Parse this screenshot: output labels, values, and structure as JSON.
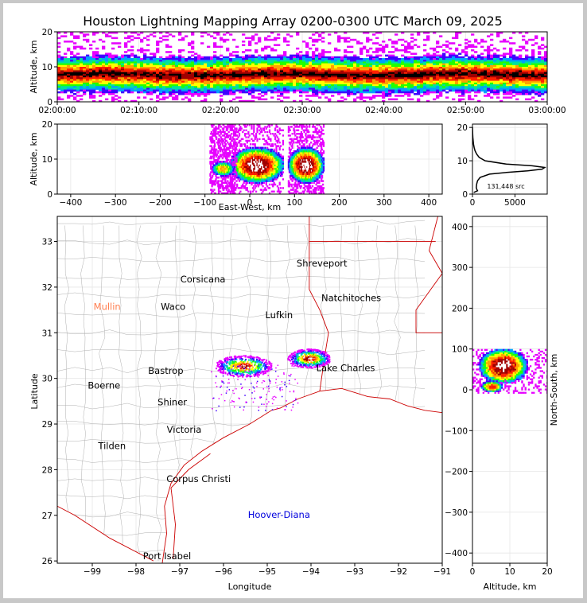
{
  "title": "Houston Lightning Mapping Array 0200-0300 UTC March 09, 2025",
  "colors": {
    "density_ramp": [
      "#e600ff",
      "#4000ff",
      "#00a0ff",
      "#00e0a0",
      "#20ff00",
      "#ffff00",
      "#ffa000",
      "#ff2000",
      "#a00000",
      "#ffffff"
    ],
    "state_border": "#cc0000",
    "county_border": "#b0b0b0",
    "grid": "#e6e6e6"
  },
  "chart_data": [
    {
      "id": "time-altitude",
      "type": "heatmap",
      "ylabel": "Altitude, km",
      "ylim": [
        0,
        20
      ],
      "yticks": [
        "0",
        "10",
        "20"
      ],
      "xticks": [
        "02:00:00",
        "02:10:00",
        "02:20:00",
        "02:30:00",
        "02:40:00",
        "02:50:00",
        "03:00:00"
      ],
      "xlim": [
        "02:00:00",
        "03:00:00"
      ],
      "peak_altitude_km": 8
    },
    {
      "id": "east-west-altitude",
      "type": "heatmap",
      "xlabel": "East-West, km",
      "ylabel": "Altitude, km",
      "xlim": [
        -430,
        430
      ],
      "ylim": [
        0,
        20
      ],
      "xticks": [
        -400,
        -300,
        -200,
        -100,
        0,
        100,
        200,
        300,
        400
      ],
      "yticks": [
        "0",
        "10",
        "20"
      ],
      "clusters": [
        {
          "x_center_km": 15,
          "x_halfwidth_km": 60,
          "core_altitude_km": 8
        },
        {
          "x_center_km": 125,
          "x_halfwidth_km": 40,
          "core_altitude_km": 8
        },
        {
          "x_center_km": -60,
          "x_halfwidth_km": 30,
          "core_altitude_km": 7
        }
      ]
    },
    {
      "id": "altitude-histogram",
      "type": "line",
      "xlim": [
        0,
        8800
      ],
      "ylim": [
        0,
        21
      ],
      "xticks": [
        0,
        5000
      ],
      "yticks": [
        "0",
        "10",
        "20"
      ],
      "annotation": "131,448 src",
      "altitude_km": [
        0.5,
        1,
        1.5,
        2,
        3,
        4,
        5,
        6,
        6.5,
        7,
        7.5,
        8,
        8.5,
        9,
        10,
        11,
        12,
        13,
        14,
        15,
        16,
        17,
        18,
        19,
        20
      ],
      "source_counts": [
        150,
        600,
        500,
        450,
        500,
        600,
        900,
        2000,
        4000,
        6500,
        8200,
        8500,
        7000,
        4000,
        1500,
        800,
        500,
        300,
        200,
        120,
        80,
        50,
        30,
        15,
        5
      ]
    },
    {
      "id": "plan-view-map",
      "type": "heatmap",
      "xlabel": "Longitude",
      "ylabel": "Latitude",
      "xlim": [
        -99.8,
        -91.0
      ],
      "ylim": [
        25.95,
        33.55
      ],
      "xticks": [
        "-99",
        "-98",
        "-97",
        "-96",
        "-95",
        "-94",
        "-93",
        "-92",
        "-91"
      ],
      "yticks": [
        "26",
        "27",
        "28",
        "29",
        "30",
        "31",
        "32",
        "33"
      ],
      "clusters": [
        {
          "lon": -95.55,
          "lat": 30.28,
          "rx_deg": 0.5,
          "ry_deg": 0.18
        },
        {
          "lon": -94.05,
          "lat": 30.45,
          "rx_deg": 0.38,
          "ry_deg": 0.16
        }
      ],
      "places": [
        {
          "name": "Shreveport",
          "lon": -93.75,
          "lat": 32.52,
          "color": "#000000"
        },
        {
          "name": "Corsicana",
          "lon": -96.47,
          "lat": 32.17,
          "color": "#000000"
        },
        {
          "name": "Natchitoches",
          "lon": -93.08,
          "lat": 31.76,
          "color": "#000000"
        },
        {
          "name": "Mullin",
          "lon": -98.66,
          "lat": 31.57,
          "color": "#ff7f50"
        },
        {
          "name": "Waco",
          "lon": -97.15,
          "lat": 31.57,
          "color": "#000000"
        },
        {
          "name": "Lufkin",
          "lon": -94.73,
          "lat": 31.39,
          "color": "#000000"
        },
        {
          "name": "Lake Charles",
          "lon": -93.21,
          "lat": 30.23,
          "color": "#000000"
        },
        {
          "name": "Bastrop",
          "lon": -97.32,
          "lat": 30.17,
          "color": "#000000"
        },
        {
          "name": "Boerne",
          "lon": -98.73,
          "lat": 29.85,
          "color": "#000000"
        },
        {
          "name": "Shiner",
          "lon": -97.17,
          "lat": 29.48,
          "color": "#000000"
        },
        {
          "name": "Victoria",
          "lon": -96.9,
          "lat": 28.88,
          "color": "#000000"
        },
        {
          "name": "Tilden",
          "lon": -98.55,
          "lat": 28.52,
          "color": "#000000"
        },
        {
          "name": "Corpus Christi",
          "lon": -96.57,
          "lat": 27.8,
          "color": "#000000"
        },
        {
          "name": "Hoover-Diana",
          "lon": -94.73,
          "lat": 27.01,
          "color": "#0000dd"
        },
        {
          "name": "Port Isabel",
          "lon": -97.29,
          "lat": 26.11,
          "color": "#000000"
        }
      ]
    },
    {
      "id": "north-south-altitude",
      "type": "heatmap",
      "xlabel": "Altitude, km",
      "ylabel": "North-South, km",
      "xlim": [
        0,
        20
      ],
      "ylim": [
        -425,
        425
      ],
      "xticks": [
        "0",
        "10",
        "20"
      ],
      "yticks": [
        -400,
        -300,
        -200,
        -100,
        0,
        100,
        200,
        300,
        400
      ],
      "clusters": [
        {
          "y_center_km": 60,
          "y_halfwidth_km": 40,
          "core_altitude_km": 8
        },
        {
          "y_center_km": 10,
          "y_halfwidth_km": 15,
          "core_altitude_km": 5
        }
      ]
    }
  ]
}
